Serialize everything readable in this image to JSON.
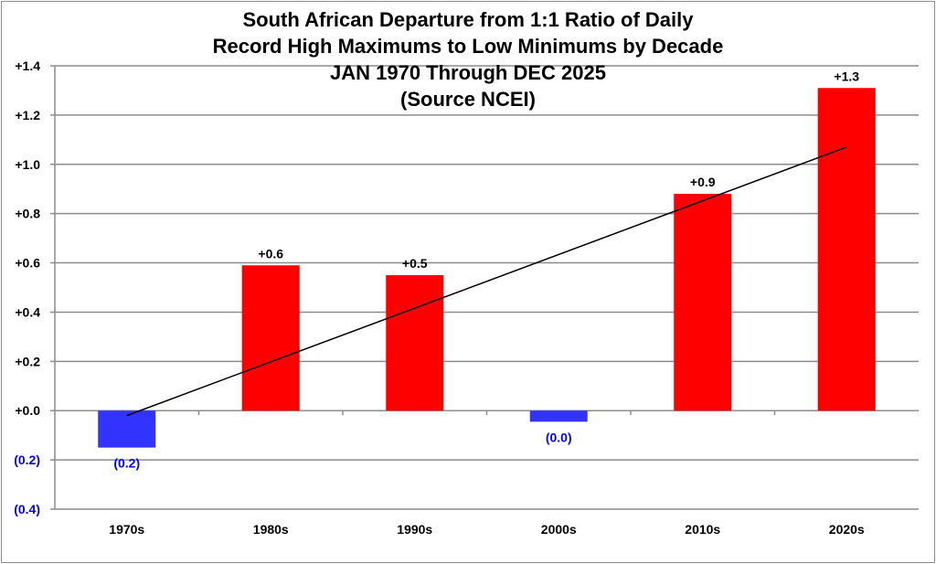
{
  "chart_data": {
    "type": "bar",
    "title_lines": [
      "South African Departure from 1:1 Ratio of Daily",
      "Record High Maximums to Low Minimums by Decade",
      "JAN 1970 Through DEC 2025",
      "(Source NCEI)"
    ],
    "categories": [
      "1970s",
      "1980s",
      "1990s",
      "2000s",
      "2010s",
      "2020s"
    ],
    "values": [
      -0.15,
      0.59,
      0.55,
      -0.045,
      0.88,
      1.31
    ],
    "data_labels": [
      "(0.2)",
      "+0.6",
      "+0.5",
      "(0.0)",
      "+0.9",
      "+1.3"
    ],
    "ylim": [
      -0.4,
      1.4
    ],
    "yticks": [
      -0.4,
      -0.2,
      0.0,
      0.2,
      0.4,
      0.6,
      0.8,
      1.0,
      1.2,
      1.4
    ],
    "ytick_labels": [
      "(0.4)",
      "(0.2)",
      "+0.0",
      "+0.2",
      "+0.4",
      "+0.6",
      "+0.8",
      "+1.0",
      "+1.2",
      "+1.4"
    ],
    "trendline": {
      "start": -0.02,
      "end": 1.07
    },
    "grid": true,
    "xlabel": "",
    "ylabel": "",
    "colors": {
      "positive": "#ff0000",
      "negative": "#3333ff",
      "negative_label": "#0000ff",
      "grid": "#8c8c8c",
      "trend": "#000000"
    }
  }
}
